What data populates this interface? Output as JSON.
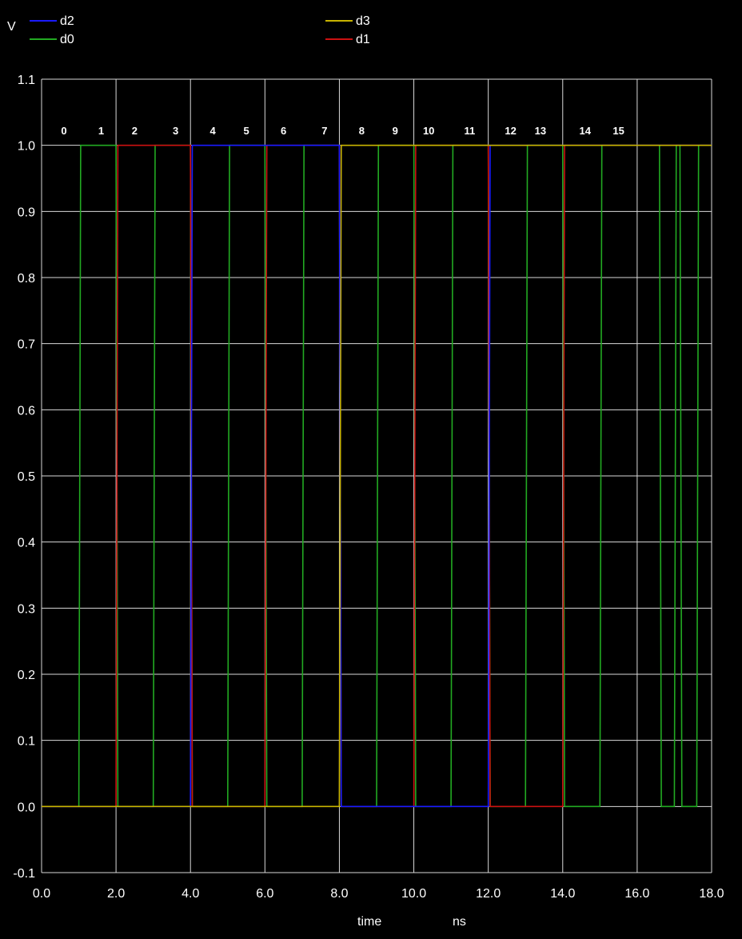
{
  "chart_data": {
    "type": "line",
    "ylabel": "V",
    "xlabel": "time",
    "xunit": "ns",
    "xlim": [
      0,
      18
    ],
    "ylim": [
      -0.1,
      1.1
    ],
    "xticks": [
      "0.0",
      "2.0",
      "4.0",
      "6.0",
      "8.0",
      "10.0",
      "12.0",
      "14.0",
      "16.0",
      "18.0"
    ],
    "yticks": [
      "-0.1",
      "0.0",
      "0.1",
      "0.2",
      "0.3",
      "0.4",
      "0.5",
      "0.6",
      "0.7",
      "0.8",
      "0.9",
      "1.0",
      "1.1"
    ],
    "grid": true,
    "legend_position": "top",
    "legend": [
      {
        "name": "d2",
        "color": "#1a1aff"
      },
      {
        "name": "d3",
        "color": "#c8b400"
      },
      {
        "name": "d0",
        "color": "#22aa22"
      },
      {
        "name": "d1",
        "color": "#cc1111"
      }
    ],
    "state_labels": [
      {
        "text": "0",
        "x": 0.6
      },
      {
        "text": "1",
        "x": 1.6
      },
      {
        "text": "2",
        "x": 2.5
      },
      {
        "text": "3",
        "x": 3.6
      },
      {
        "text": "4",
        "x": 4.6
      },
      {
        "text": "5",
        "x": 5.5
      },
      {
        "text": "6",
        "x": 6.5
      },
      {
        "text": "7",
        "x": 7.6
      },
      {
        "text": "8",
        "x": 8.6
      },
      {
        "text": "9",
        "x": 9.5
      },
      {
        "text": "10",
        "x": 10.4
      },
      {
        "text": "11",
        "x": 11.5
      },
      {
        "text": "12",
        "x": 12.6
      },
      {
        "text": "13",
        "x": 13.4
      },
      {
        "text": "14",
        "x": 14.6
      },
      {
        "text": "15",
        "x": 15.5
      }
    ],
    "series": [
      {
        "name": "d0",
        "color": "#22aa22",
        "x": [
          0,
          1.0,
          1.05,
          2.0,
          2.05,
          3.0,
          3.05,
          4.0,
          4.05,
          5.0,
          5.05,
          6.0,
          6.05,
          7.0,
          7.05,
          8.0,
          8.05,
          9.0,
          9.05,
          10.0,
          10.05,
          11.0,
          11.05,
          12.0,
          12.05,
          13.0,
          13.05,
          14.0,
          14.05,
          15.0,
          15.05,
          16.0,
          16.6,
          16.65,
          17.0,
          17.05,
          17.15,
          17.2,
          17.6,
          17.65,
          18.0
        ],
        "y": [
          0,
          0,
          1,
          1,
          0,
          0,
          1,
          1,
          0,
          0,
          1,
          1,
          0,
          0,
          1,
          1,
          0,
          0,
          1,
          1,
          0,
          0,
          1,
          1,
          0,
          0,
          1,
          1,
          0,
          0,
          1,
          1,
          1,
          0,
          0,
          1,
          1,
          0,
          0,
          1,
          1
        ]
      },
      {
        "name": "d1",
        "color": "#cc1111",
        "x": [
          0,
          2.0,
          2.05,
          4.0,
          4.05,
          6.0,
          6.05,
          8.0,
          8.05,
          10.0,
          10.05,
          12.0,
          12.05,
          14.0,
          14.05,
          16.0,
          18.0
        ],
        "y": [
          0,
          0,
          1,
          1,
          0,
          0,
          1,
          1,
          0,
          0,
          1,
          1,
          0,
          0,
          1,
          1,
          1
        ]
      },
      {
        "name": "d2",
        "color": "#1a1aff",
        "x": [
          0,
          4.0,
          4.05,
          8.0,
          8.05,
          12.0,
          12.05,
          16.0,
          18.0
        ],
        "y": [
          0,
          0,
          1,
          1,
          0,
          0,
          1,
          1,
          1
        ]
      },
      {
        "name": "d3",
        "color": "#c8b400",
        "x": [
          0,
          8.0,
          8.05,
          16.0,
          18.0
        ],
        "y": [
          0,
          0,
          1,
          1,
          1
        ]
      }
    ]
  }
}
